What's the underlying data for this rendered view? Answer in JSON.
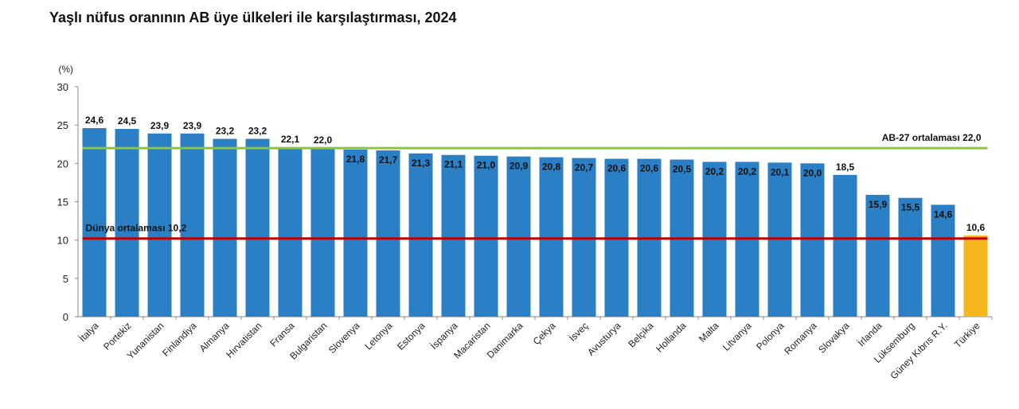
{
  "chart_data": {
    "type": "bar",
    "title": "Yaşlı nüfus oranının AB üye ülkeleri ile karşılaştırması, 2024",
    "ylabel": "(%)",
    "ylim": [
      0,
      30
    ],
    "yticks": [
      0,
      5,
      10,
      15,
      20,
      25,
      30
    ],
    "grid": false,
    "categories": [
      "İtalya",
      "Portekiz",
      "Yunanistan",
      "Finlandiya",
      "Almanya",
      "Hırvatistan",
      "Fransa",
      "Bulgaristan",
      "Slovenya",
      "Letonya",
      "Estonya",
      "İspanya",
      "Macaristan",
      "Danimarka",
      "Çekya",
      "İsveç",
      "Avusturya",
      "Belçika",
      "Hollanda",
      "Malta",
      "Litvanya",
      "Polonya",
      "Romanya",
      "Slovakya",
      "İrlanda",
      "Lüksemburg",
      "Güney Kıbrıs R.Y.",
      "Türkiye"
    ],
    "values": [
      24.6,
      24.5,
      23.9,
      23.9,
      23.2,
      23.2,
      22.1,
      22.0,
      21.8,
      21.7,
      21.3,
      21.1,
      21.0,
      20.9,
      20.8,
      20.7,
      20.6,
      20.6,
      20.5,
      20.2,
      20.2,
      20.1,
      20.0,
      18.5,
      15.9,
      15.5,
      14.6,
      10.6
    ],
    "data_labels": [
      "24,6",
      "24,5",
      "23,9",
      "23,9",
      "23,2",
      "23,2",
      "22,1",
      "22,0",
      "21,8",
      "21,7",
      "21,3",
      "21,1",
      "21,0",
      "20,9",
      "20,8",
      "20,7",
      "20,6",
      "20,6",
      "20,5",
      "20,2",
      "20,2",
      "20,1",
      "20,0",
      "18,5",
      "15,9",
      "15,5",
      "14,6",
      "10,6"
    ],
    "highlight_category": "Türkiye",
    "colors": {
      "bar": "#2a7fc5",
      "highlight": "#f6b71e",
      "eu_line": "#8cc43f",
      "world_line": "#c00000"
    },
    "reference_lines": [
      {
        "name": "AB-27 ortalaması",
        "value": 22.0,
        "label": "AB-27 ortalaması  22,0"
      },
      {
        "name": "Dünya ortalaması",
        "value": 10.2,
        "label": "Dünya ortalaması  10,2"
      }
    ]
  }
}
